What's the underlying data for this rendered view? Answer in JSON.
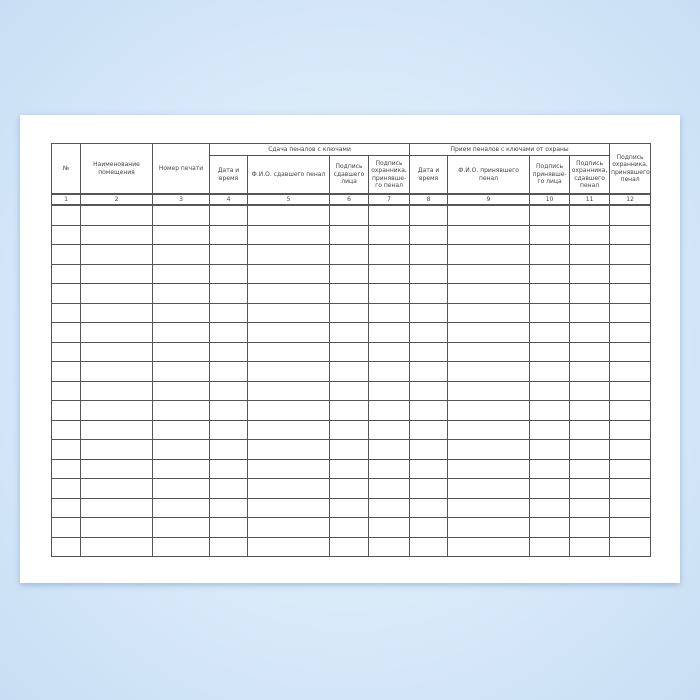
{
  "form": {
    "group_headers": {
      "handover": "Сдача пеналов с ключами",
      "receive": "Прием пеналов с ключами от охраны"
    },
    "columns": [
      {
        "label": "№",
        "number": "1"
      },
      {
        "label": "Наименование помещения",
        "number": "2"
      },
      {
        "label": "Номер печати",
        "number": "3"
      },
      {
        "label": "Дата и время",
        "number": "4"
      },
      {
        "label": "Ф.И.О. сдавшего пенал",
        "number": "5"
      },
      {
        "label": "Подпись сдавшего лица",
        "number": "6"
      },
      {
        "label": "Подпись охранника, принявше-го пенал",
        "number": "7"
      },
      {
        "label": "Дата и время",
        "number": "8"
      },
      {
        "label": "Ф.И.О. принявшего пенал",
        "number": "9"
      },
      {
        "label": "Подпись принявше-го лица",
        "number": "10"
      },
      {
        "label": "Подпись охранника, сдавшего пенал",
        "number": "11"
      },
      {
        "label": "Подпись охранника, принявшего пенал",
        "number": "12"
      }
    ]
  }
}
